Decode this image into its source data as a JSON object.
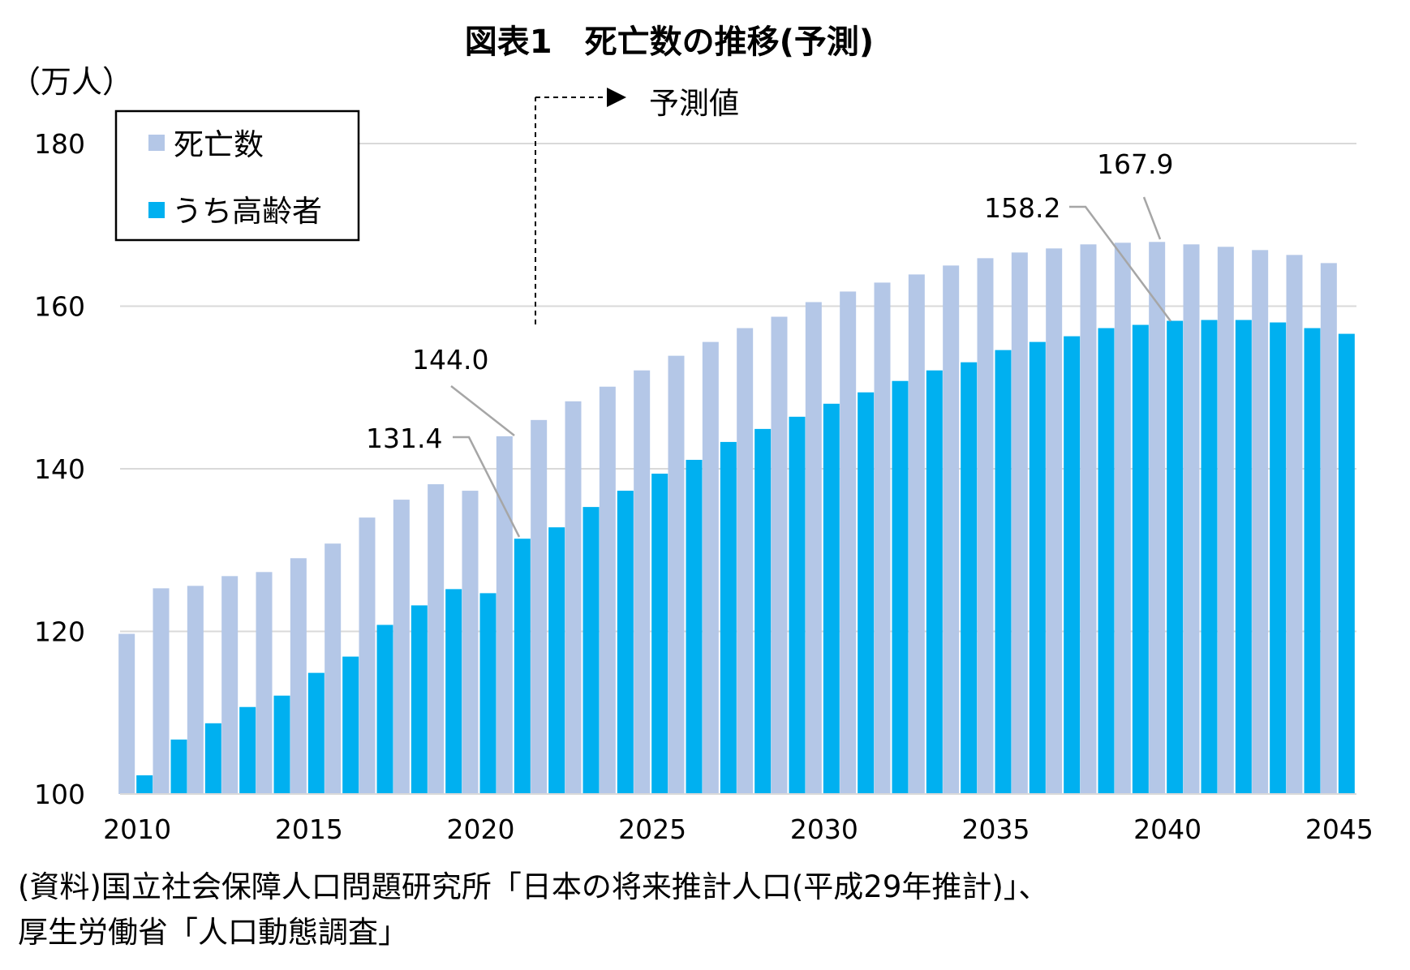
{
  "chart_data": {
    "type": "bar",
    "title": "図表1　死亡数の推移(予測)",
    "ylabel": "（万人）",
    "ylim": [
      100,
      180
    ],
    "yticks": [
      100,
      120,
      140,
      160,
      180
    ],
    "x": [
      2010,
      2011,
      2012,
      2013,
      2014,
      2015,
      2016,
      2017,
      2018,
      2019,
      2020,
      2021,
      2022,
      2023,
      2024,
      2025,
      2026,
      2027,
      2028,
      2029,
      2030,
      2031,
      2032,
      2033,
      2034,
      2035,
      2036,
      2037,
      2038,
      2039,
      2040,
      2041,
      2042,
      2043,
      2044,
      2045
    ],
    "xtick_labels": [
      "2010",
      "2015",
      "2020",
      "2025",
      "2030",
      "2035",
      "2040",
      "2045"
    ],
    "series": [
      {
        "name": "死亡数",
        "color": "#b4c7e7",
        "values": [
          119.7,
          125.3,
          125.6,
          126.8,
          127.3,
          129.0,
          130.8,
          134.0,
          136.2,
          138.1,
          137.3,
          144.0,
          146.0,
          148.3,
          150.1,
          152.1,
          153.9,
          155.6,
          157.3,
          158.7,
          160.5,
          161.8,
          162.9,
          163.9,
          165.0,
          165.9,
          166.6,
          167.1,
          167.6,
          167.8,
          167.9,
          167.6,
          167.3,
          166.9,
          166.3,
          165.3
        ]
      },
      {
        "name": "うち高齢者",
        "color": "#00b0f0",
        "values": [
          102.3,
          106.7,
          108.7,
          110.7,
          112.1,
          114.9,
          116.9,
          120.8,
          123.2,
          125.2,
          124.7,
          131.4,
          132.8,
          135.3,
          137.3,
          139.4,
          141.1,
          143.3,
          144.9,
          146.4,
          148.0,
          149.4,
          150.8,
          152.1,
          153.1,
          154.6,
          155.6,
          156.3,
          157.3,
          157.7,
          158.2,
          158.3,
          158.3,
          158.0,
          157.3,
          156.6
        ]
      }
    ],
    "legend": [
      "死亡数",
      "うち高齢者"
    ],
    "forecast_label": "予測値",
    "forecast_start": 2022,
    "annotations": [
      {
        "text": "144.0",
        "year": 2021,
        "series": "死亡数"
      },
      {
        "text": "131.4",
        "year": 2021,
        "series": "うち高齢者"
      },
      {
        "text": "158.2",
        "year": 2040,
        "series": "うち高齢者"
      },
      {
        "text": "167.9",
        "year": 2040,
        "series": "死亡数"
      }
    ],
    "grid": true
  },
  "source": {
    "line1": "(資料)国立社会保障人口問題研究所「日本の将来推計人口(平成29年推計)」、",
    "line2": "厚生労働省「人口動態調査」"
  }
}
